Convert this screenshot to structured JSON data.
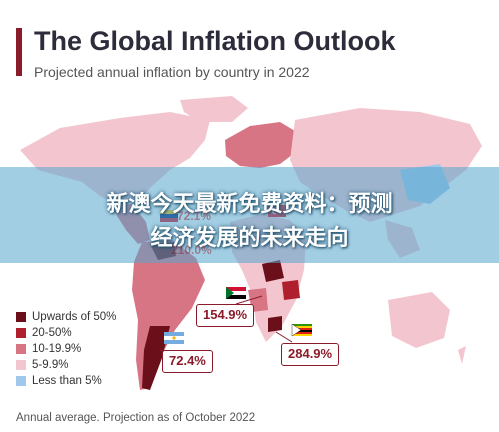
{
  "header": {
    "title": "The Global Inflation Outlook",
    "subtitle": "Projected annual inflation by country in 2022"
  },
  "banner": {
    "line1": "新澳今天最新免费资料：预测",
    "line2": "经济发展的未来走向"
  },
  "legend": [
    {
      "label": "Upwards of 50%",
      "color": "#6b0f1a"
    },
    {
      "label": "20-50%",
      "color": "#b01f2e"
    },
    {
      "label": "10-19.9%",
      "color": "#d77585"
    },
    {
      "label": "5-9.9%",
      "color": "#f3c6cf"
    },
    {
      "label": "Less than 5%",
      "color": "#9fc8ea"
    }
  ],
  "callouts": [
    {
      "value": "154.9%",
      "flag": "sudan-flag"
    },
    {
      "value": "284.9%",
      "flag": "zimbabwe-flag"
    },
    {
      "value": "72.4%",
      "flag": "argentina-flag"
    }
  ],
  "obscured_callouts": [
    "72.1%",
    "210.0%"
  ],
  "footnote": "Annual average. Projection as of October 2022"
}
